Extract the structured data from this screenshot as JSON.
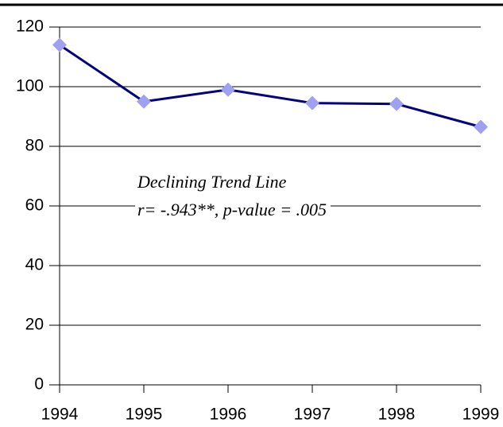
{
  "chart_data": {
    "type": "line",
    "categories": [
      "1994",
      "1995",
      "1996",
      "1997",
      "1998",
      "1999"
    ],
    "series": [
      {
        "color": "#000080",
        "marker_color": "#a0a0f0",
        "values": [
          114,
          95,
          99,
          94.5,
          94.2,
          86.5
        ]
      }
    ],
    "ylim": [
      0,
      120
    ],
    "yticks": [
      0,
      20,
      40,
      60,
      80,
      100,
      120
    ],
    "grid": true,
    "annotation": [
      "Declining Trend Line",
      "r= -.943**, p-value = .005"
    ]
  }
}
